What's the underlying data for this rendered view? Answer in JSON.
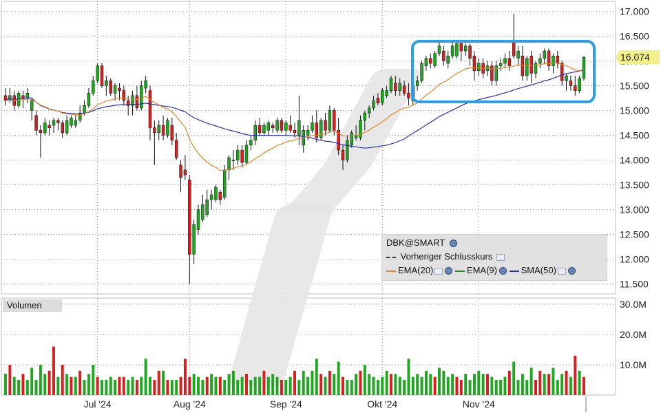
{
  "header": {},
  "legend": {
    "symbol": "DBK@SMART",
    "prev_close": "Vorheriger Schlusskurs",
    "ema20": "EMA(20)",
    "ema9": "EMA(9)",
    "sma50": "SMA(50)"
  },
  "volume_label": "Volumen",
  "colors": {
    "up": "#1fa81f",
    "down": "#d61f1f",
    "ema20": "#e3842a",
    "ema9": "#228b22",
    "sma50": "#2a2fb8",
    "highlight": "#2aa0e6",
    "last_price_bg": "#f2f08a"
  },
  "chart_data": {
    "type": "candlestick",
    "title": "",
    "ylim": [
      11.3,
      17.2
    ],
    "yticks": [
      "17.000",
      "16.500",
      "16.000",
      "15.500",
      "15.000",
      "14.500",
      "14.000",
      "13.500",
      "13.000",
      "12.500",
      "12.000",
      "11.500"
    ],
    "last_price": "16.074",
    "xlabels": [
      "Jul '24",
      "Aug '24",
      "Sep '24",
      "Okt '24",
      "Nov '24"
    ],
    "volume_yticks": [
      "30.0M",
      "20.0M",
      "10.0M"
    ],
    "volume_ylim": [
      0,
      32
    ],
    "candles": [
      [
        15.3,
        15.45,
        15.1,
        15.2
      ],
      [
        15.2,
        15.45,
        15.15,
        15.3
      ],
      [
        15.3,
        15.4,
        15.0,
        15.1
      ],
      [
        15.1,
        15.4,
        15.05,
        15.35
      ],
      [
        15.3,
        15.4,
        15.05,
        15.25
      ],
      [
        15.25,
        15.45,
        15.15,
        15.35
      ],
      [
        15.0,
        15.25,
        14.8,
        15.2
      ],
      [
        14.9,
        15.0,
        14.5,
        14.6
      ],
      [
        14.6,
        14.7,
        14.05,
        14.55
      ],
      [
        14.55,
        14.85,
        14.5,
        14.75
      ],
      [
        14.7,
        14.8,
        14.5,
        14.65
      ],
      [
        14.7,
        14.85,
        14.55,
        14.8
      ],
      [
        14.8,
        14.85,
        14.6,
        14.75
      ],
      [
        14.75,
        14.8,
        14.45,
        14.55
      ],
      [
        14.55,
        14.9,
        14.5,
        14.8
      ],
      [
        14.7,
        14.9,
        14.65,
        14.85
      ],
      [
        14.7,
        14.9,
        14.65,
        14.8
      ],
      [
        14.8,
        15.1,
        14.75,
        14.95
      ],
      [
        14.95,
        15.2,
        14.9,
        15.1
      ],
      [
        15.1,
        15.45,
        15.05,
        15.35
      ],
      [
        15.35,
        15.7,
        15.3,
        15.6
      ],
      [
        15.6,
        15.95,
        15.55,
        15.9
      ],
      [
        15.9,
        15.95,
        15.45,
        15.5
      ],
      [
        15.5,
        15.7,
        15.3,
        15.6
      ],
      [
        15.6,
        15.65,
        15.3,
        15.35
      ],
      [
        15.35,
        15.55,
        15.2,
        15.5
      ],
      [
        15.45,
        15.55,
        15.2,
        15.4
      ],
      [
        15.4,
        15.5,
        15.1,
        15.2
      ],
      [
        15.2,
        15.3,
        14.9,
        15.1
      ],
      [
        15.1,
        15.4,
        14.9,
        15.3
      ],
      [
        15.3,
        15.5,
        15.0,
        15.05
      ],
      [
        15.05,
        15.6,
        15.0,
        15.5
      ],
      [
        15.45,
        15.7,
        15.35,
        15.6
      ],
      [
        15.4,
        15.5,
        14.4,
        14.65
      ],
      [
        14.65,
        14.8,
        13.9,
        14.55
      ],
      [
        14.55,
        14.8,
        14.4,
        14.7
      ],
      [
        14.7,
        14.9,
        14.4,
        14.5
      ],
      [
        14.5,
        14.85,
        14.45,
        14.8
      ],
      [
        14.7,
        14.85,
        14.3,
        14.4
      ],
      [
        14.4,
        14.55,
        14.0,
        14.05
      ],
      [
        13.9,
        14.0,
        13.35,
        13.65
      ],
      [
        13.8,
        14.1,
        13.6,
        13.7
      ],
      [
        13.6,
        13.7,
        11.5,
        12.1
      ],
      [
        12.1,
        12.8,
        11.9,
        12.7
      ],
      [
        12.6,
        13.1,
        12.5,
        13.0
      ],
      [
        12.8,
        13.3,
        12.75,
        13.1
      ],
      [
        12.9,
        13.4,
        12.85,
        13.2
      ],
      [
        13.2,
        13.4,
        13.0,
        13.3
      ],
      [
        13.2,
        13.5,
        13.15,
        13.45
      ],
      [
        13.35,
        13.4,
        13.1,
        13.2
      ],
      [
        13.25,
        13.9,
        13.2,
        13.8
      ],
      [
        13.8,
        14.1,
        13.6,
        14.05
      ],
      [
        14.0,
        14.2,
        13.8,
        14.0
      ],
      [
        14.0,
        14.3,
        13.9,
        14.2
      ],
      [
        14.2,
        14.3,
        13.85,
        13.95
      ],
      [
        13.95,
        14.4,
        13.9,
        14.3
      ],
      [
        14.3,
        14.5,
        14.2,
        14.4
      ],
      [
        14.4,
        14.8,
        14.3,
        14.7
      ],
      [
        14.7,
        14.85,
        14.5,
        14.55
      ],
      [
        14.55,
        14.75,
        14.5,
        14.7
      ],
      [
        14.6,
        14.8,
        14.5,
        14.75
      ],
      [
        14.7,
        14.75,
        14.55,
        14.65
      ],
      [
        14.6,
        14.85,
        14.55,
        14.8
      ],
      [
        14.8,
        14.85,
        14.55,
        14.6
      ],
      [
        14.6,
        14.8,
        14.5,
        14.75
      ],
      [
        14.7,
        14.9,
        14.55,
        14.6
      ],
      [
        14.6,
        14.75,
        14.45,
        14.55
      ],
      [
        14.5,
        15.3,
        14.3,
        14.8
      ],
      [
        14.3,
        14.7,
        14.15,
        14.6
      ],
      [
        14.5,
        14.7,
        14.4,
        14.6
      ],
      [
        14.6,
        14.9,
        14.55,
        14.75
      ],
      [
        14.75,
        15.0,
        14.35,
        14.45
      ],
      [
        14.45,
        14.85,
        14.4,
        14.8
      ],
      [
        14.8,
        14.95,
        14.5,
        14.6
      ],
      [
        14.6,
        15.1,
        14.55,
        15.0
      ],
      [
        15.0,
        15.05,
        14.5,
        14.6
      ],
      [
        14.6,
        14.85,
        14.1,
        14.2
      ],
      [
        14.2,
        14.3,
        13.8,
        14.0
      ],
      [
        14.0,
        14.5,
        13.95,
        14.4
      ],
      [
        14.3,
        14.6,
        14.25,
        14.55
      ],
      [
        14.45,
        14.7,
        14.4,
        14.5
      ],
      [
        14.45,
        14.9,
        14.4,
        14.8
      ],
      [
        14.8,
        15.0,
        14.6,
        14.95
      ],
      [
        14.95,
        15.1,
        14.85,
        15.05
      ],
      [
        15.05,
        15.3,
        15.0,
        15.2
      ],
      [
        15.25,
        15.35,
        15.1,
        15.15
      ],
      [
        15.15,
        15.45,
        15.1,
        15.4
      ],
      [
        15.3,
        15.5,
        15.25,
        15.4
      ],
      [
        15.4,
        15.7,
        15.35,
        15.65
      ],
      [
        15.55,
        15.7,
        15.3,
        15.4
      ],
      [
        15.4,
        15.65,
        15.3,
        15.55
      ],
      [
        15.5,
        15.6,
        15.3,
        15.35
      ],
      [
        15.35,
        15.55,
        15.1,
        15.25
      ],
      [
        15.2,
        15.6,
        15.1,
        15.5
      ],
      [
        15.5,
        15.7,
        15.4,
        15.6
      ],
      [
        15.6,
        16.0,
        15.55,
        15.95
      ],
      [
        15.9,
        16.1,
        15.8,
        16.05
      ],
      [
        16.05,
        16.15,
        15.85,
        15.95
      ],
      [
        15.9,
        16.2,
        15.85,
        16.15
      ],
      [
        16.15,
        16.4,
        16.1,
        16.3
      ],
      [
        16.2,
        16.3,
        15.9,
        16.0
      ],
      [
        15.95,
        16.2,
        15.85,
        16.1
      ],
      [
        16.1,
        16.4,
        16.05,
        16.3
      ],
      [
        16.1,
        16.4,
        16.05,
        16.35
      ],
      [
        16.35,
        16.4,
        16.0,
        16.2
      ],
      [
        16.2,
        16.35,
        16.1,
        16.3
      ],
      [
        16.3,
        16.35,
        15.9,
        16.05
      ],
      [
        16.1,
        16.2,
        15.6,
        15.8
      ],
      [
        15.8,
        16.05,
        15.7,
        15.95
      ],
      [
        15.95,
        16.05,
        15.65,
        15.75
      ],
      [
        15.8,
        16.0,
        15.7,
        15.9
      ],
      [
        15.9,
        16.0,
        15.5,
        15.6
      ],
      [
        15.6,
        16.0,
        15.5,
        15.9
      ],
      [
        15.9,
        16.05,
        15.8,
        15.95
      ],
      [
        15.95,
        16.15,
        15.85,
        16.05
      ],
      [
        16.05,
        16.2,
        15.8,
        15.9
      ],
      [
        16.4,
        16.95,
        16.05,
        16.1
      ],
      [
        16.05,
        16.3,
        15.9,
        16.2
      ],
      [
        16.1,
        16.3,
        15.6,
        15.7
      ],
      [
        15.7,
        16.1,
        15.6,
        16.05
      ],
      [
        16.1,
        16.2,
        15.55,
        15.75
      ],
      [
        15.75,
        16.0,
        15.65,
        15.95
      ],
      [
        15.95,
        16.15,
        15.85,
        16.05
      ],
      [
        16.05,
        16.25,
        15.95,
        16.2
      ],
      [
        16.2,
        16.25,
        15.8,
        15.9
      ],
      [
        15.9,
        16.15,
        15.75,
        16.1
      ],
      [
        16.1,
        16.2,
        15.85,
        15.95
      ],
      [
        15.95,
        16.0,
        15.5,
        15.6
      ],
      [
        15.6,
        15.75,
        15.4,
        15.7
      ],
      [
        15.6,
        15.7,
        15.4,
        15.5
      ],
      [
        15.5,
        15.7,
        15.3,
        15.4
      ],
      [
        15.4,
        15.7,
        15.35,
        15.65
      ],
      [
        15.65,
        16.1,
        15.6,
        16.07
      ]
    ],
    "volumes": [
      [
        7,
        "up"
      ],
      [
        10,
        "down"
      ],
      [
        6,
        "up"
      ],
      [
        5,
        "up"
      ],
      [
        7,
        "down"
      ],
      [
        5,
        "up"
      ],
      [
        9,
        "up"
      ],
      [
        5,
        "up"
      ],
      [
        10,
        "up"
      ],
      [
        7,
        "up"
      ],
      [
        8,
        "down"
      ],
      [
        16,
        "down"
      ],
      [
        6,
        "up"
      ],
      [
        10,
        "down"
      ],
      [
        7,
        "up"
      ],
      [
        6,
        "down"
      ],
      [
        6,
        "up"
      ],
      [
        8,
        "down"
      ],
      [
        5,
        "up"
      ],
      [
        7,
        "up"
      ],
      [
        10,
        "up"
      ],
      [
        6,
        "down"
      ],
      [
        5,
        "up"
      ],
      [
        5,
        "up"
      ],
      [
        6,
        "up"
      ],
      [
        5,
        "up"
      ],
      [
        6,
        "down"
      ],
      [
        6,
        "down"
      ],
      [
        5,
        "up"
      ],
      [
        6,
        "up"
      ],
      [
        5,
        "down"
      ],
      [
        6,
        "up"
      ],
      [
        12,
        "up"
      ],
      [
        6,
        "up"
      ],
      [
        5,
        "down"
      ],
      [
        8,
        "down"
      ],
      [
        8,
        "up"
      ],
      [
        5,
        "down"
      ],
      [
        5,
        "up"
      ],
      [
        5,
        "up"
      ],
      [
        6,
        "down"
      ],
      [
        12,
        "down"
      ],
      [
        6,
        "down"
      ],
      [
        7,
        "up"
      ],
      [
        6,
        "up"
      ],
      [
        5,
        "up"
      ],
      [
        6,
        "down"
      ],
      [
        7,
        "up"
      ],
      [
        6,
        "up"
      ],
      [
        6,
        "down"
      ],
      [
        5,
        "up"
      ],
      [
        7,
        "up"
      ],
      [
        8,
        "up"
      ],
      [
        5,
        "up"
      ],
      [
        6,
        "up"
      ],
      [
        7,
        "down"
      ],
      [
        5,
        "up"
      ],
      [
        6,
        "up"
      ],
      [
        6,
        "up"
      ],
      [
        8,
        "down"
      ],
      [
        6,
        "up"
      ],
      [
        7,
        "up"
      ],
      [
        6,
        "up"
      ],
      [
        5,
        "down"
      ],
      [
        5,
        "up"
      ],
      [
        6,
        "up"
      ],
      [
        8,
        "down"
      ],
      [
        5,
        "up"
      ],
      [
        8,
        "up"
      ],
      [
        6,
        "up"
      ],
      [
        8,
        "up"
      ],
      [
        12,
        "up"
      ],
      [
        7,
        "down"
      ],
      [
        6,
        "up"
      ],
      [
        8,
        "down"
      ],
      [
        7,
        "up"
      ],
      [
        11,
        "up"
      ],
      [
        6,
        "down"
      ],
      [
        5,
        "up"
      ],
      [
        5,
        "up"
      ],
      [
        7,
        "up"
      ],
      [
        8,
        "down"
      ],
      [
        10,
        "up"
      ],
      [
        7,
        "up"
      ],
      [
        6,
        "up"
      ],
      [
        5,
        "up"
      ],
      [
        6,
        "up"
      ],
      [
        8,
        "up"
      ],
      [
        7,
        "down"
      ],
      [
        7,
        "up"
      ],
      [
        6,
        "up"
      ],
      [
        5,
        "up"
      ],
      [
        12,
        "up"
      ],
      [
        6,
        "up"
      ],
      [
        7,
        "up"
      ],
      [
        6,
        "up"
      ],
      [
        8,
        "up"
      ],
      [
        7,
        "up"
      ],
      [
        6,
        "down"
      ],
      [
        9,
        "up"
      ],
      [
        8,
        "up"
      ],
      [
        6,
        "up"
      ],
      [
        7,
        "up"
      ],
      [
        6,
        "down"
      ],
      [
        5,
        "down"
      ],
      [
        7,
        "up"
      ],
      [
        5,
        "up"
      ],
      [
        7,
        "up"
      ],
      [
        8,
        "up"
      ],
      [
        7,
        "up"
      ],
      [
        7,
        "down"
      ],
      [
        6,
        "up"
      ],
      [
        5,
        "up"
      ],
      [
        5,
        "up"
      ],
      [
        6,
        "up"
      ],
      [
        8,
        "down"
      ],
      [
        11,
        "up"
      ],
      [
        5,
        "up"
      ],
      [
        7,
        "up"
      ],
      [
        5,
        "up"
      ],
      [
        9,
        "up"
      ],
      [
        5,
        "down"
      ],
      [
        8,
        "down"
      ],
      [
        7,
        "up"
      ],
      [
        7,
        "down"
      ],
      [
        9,
        "up"
      ],
      [
        5,
        "up"
      ],
      [
        7,
        "up"
      ],
      [
        8,
        "down"
      ],
      [
        6,
        "up"
      ],
      [
        13,
        "down"
      ],
      [
        8,
        "up"
      ],
      [
        6,
        "down"
      ],
      [
        8,
        "up"
      ],
      [
        10,
        "up"
      ]
    ]
  }
}
